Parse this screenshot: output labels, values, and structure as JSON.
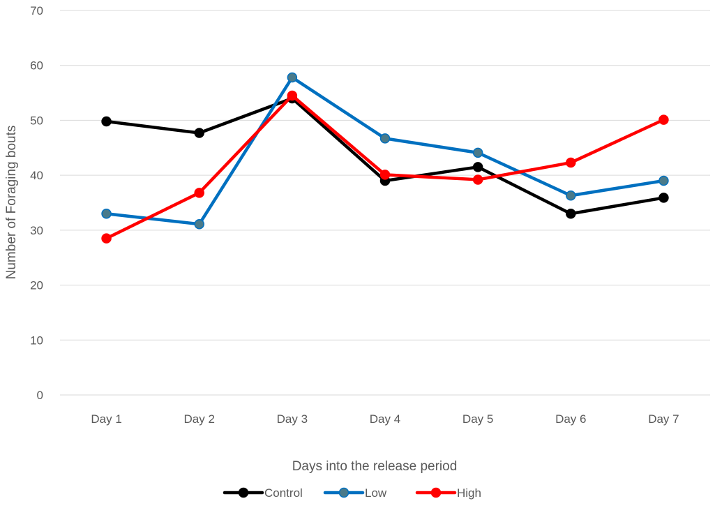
{
  "chart_data": {
    "type": "line",
    "categories": [
      "Day 1",
      "Day 2",
      "Day 3",
      "Day 4",
      "Day 5",
      "Day 6",
      "Day 7"
    ],
    "series": [
      {
        "name": "Control",
        "color": "#000000",
        "marker_fill": "#000000",
        "values": [
          49.8,
          47.7,
          54.0,
          39.0,
          41.5,
          33.0,
          35.9
        ]
      },
      {
        "name": "Low",
        "color": "#0070C0",
        "marker_fill": "#4A7A8A",
        "values": [
          33.0,
          31.1,
          57.8,
          46.7,
          44.1,
          36.3,
          39.0
        ]
      },
      {
        "name": "High",
        "color": "#FF0000",
        "marker_fill": "#FF0000",
        "values": [
          28.5,
          36.8,
          54.5,
          40.1,
          39.2,
          42.3,
          50.1
        ]
      }
    ],
    "title": "",
    "xlabel": "Days into the release period",
    "ylabel": "Number of Foraging bouts",
    "ylim": [
      0,
      70
    ],
    "yticks": [
      0,
      10,
      20,
      30,
      40,
      50,
      60,
      70
    ],
    "grid": true,
    "legend": "bottom-center"
  }
}
